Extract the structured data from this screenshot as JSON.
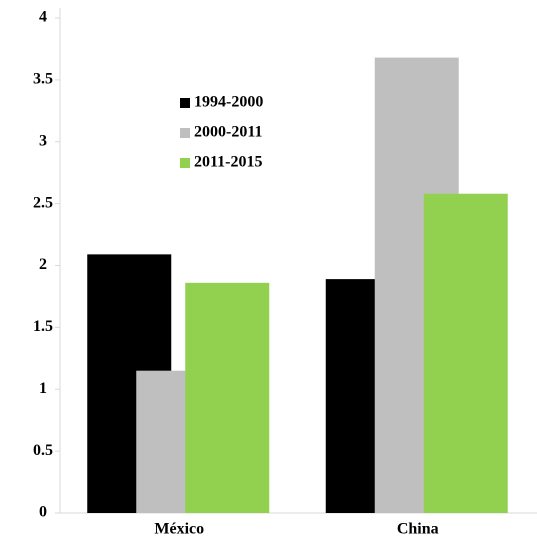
{
  "chart_data": {
    "type": "bar",
    "categories": [
      "México",
      "China"
    ],
    "series": [
      {
        "name": "1994-2000",
        "color": "#000000",
        "values": [
          2.09,
          1.89
        ]
      },
      {
        "name": "2000-2011",
        "color": "#bfbfbf",
        "values": [
          1.15,
          3.68
        ]
      },
      {
        "name": "2011-2015",
        "color": "#92d050",
        "values": [
          1.86,
          2.58
        ]
      }
    ],
    "ylim": [
      0,
      4
    ],
    "yticks": [
      0,
      0.5,
      1,
      1.5,
      2,
      2.5,
      3,
      3.5,
      4
    ],
    "grid": false,
    "legend": "upper left"
  }
}
